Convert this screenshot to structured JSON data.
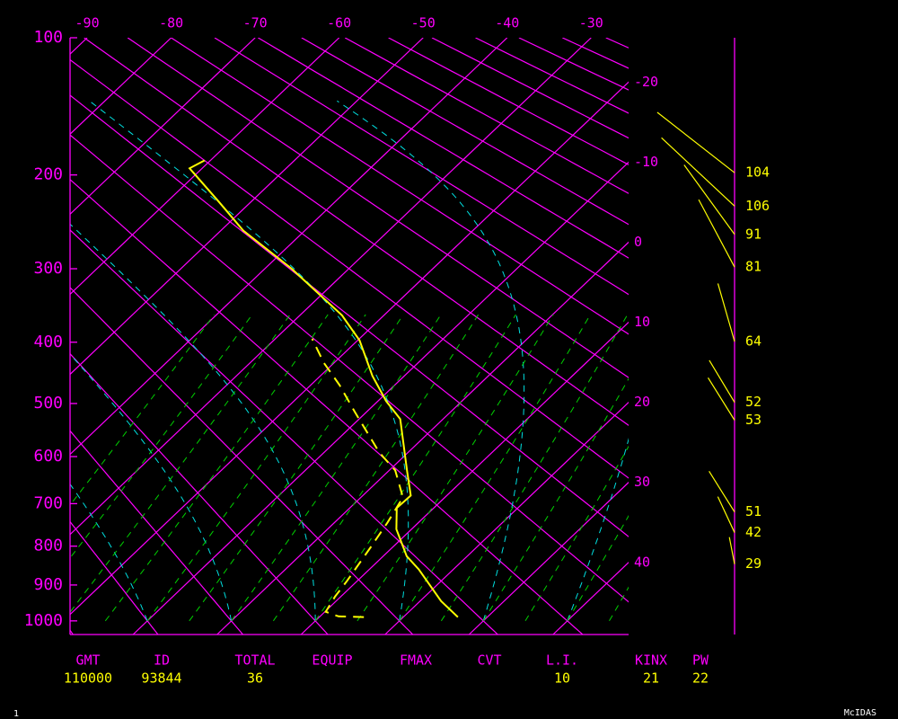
{
  "chart_data": {
    "type": "skewt",
    "xlim": [
      -17.5,
      49
    ],
    "ylim": [
      100,
      1040
    ],
    "xticks": [
      -90,
      -80,
      -70,
      -60,
      -50,
      -40,
      -30,
      -20,
      -10,
      0,
      10,
      20,
      30,
      40
    ],
    "yticks": [
      100,
      200,
      300,
      400,
      500,
      600,
      700,
      800,
      900,
      1000
    ],
    "series": [
      {
        "color": "#ffff00",
        "style": "solid",
        "pressure": [
          989,
          944,
          859,
          825,
          759,
          710,
          682,
          628,
          528,
          496,
          453,
          397,
          361,
          300,
          256,
          225,
          194,
          187
        ],
        "values": [
          26.5,
          22.5,
          15.9,
          12.8,
          8.2,
          5.6,
          5.7,
          2.1,
          -5.1,
          -9.0,
          -13.8,
          -19.8,
          -25.0,
          -36.8,
          -47.3,
          -54.0,
          -61.5,
          -60.7
        ]
      },
      {
        "color": "#ffff00",
        "style": "dashed",
        "pressure": [
          989,
          987,
          974,
          931,
          890,
          803,
          743,
          686,
          628,
          592,
          515,
          468,
          432,
          395
        ],
        "values": [
          15.3,
          12.2,
          10.1,
          9.3,
          8.8,
          7.4,
          6.3,
          5.0,
          0.7,
          -3.4,
          -11.4,
          -16.6,
          -21.2,
          -25.6
        ]
      }
    ],
    "winds": {
      "color": "#ffff00",
      "pressure": [
        198,
        230,
        260,
        298,
        399,
        498,
        530,
        719,
        767,
        845
      ],
      "direction": [
        308,
        313,
        324,
        332,
        344,
        329,
        328,
        328,
        335,
        349
      ],
      "values": [
        104,
        106,
        91,
        81,
        64,
        52,
        53,
        51,
        42,
        29
      ]
    }
  },
  "stats": [
    {
      "label": "GMT",
      "value": "110000"
    },
    {
      "label": "ID",
      "value": "93844"
    },
    {
      "label": "TOTAL",
      "value": 36
    },
    {
      "label": "EQUIP"
    },
    {
      "label": "FMAX"
    },
    {
      "label": "CVT"
    },
    {
      "label": "L.I.",
      "value": 10
    },
    {
      "label": "KINX",
      "value": 21
    },
    {
      "label": "PW",
      "value": 22
    }
  ],
  "footer": {
    "left": "1",
    "right": "McIDAS"
  }
}
